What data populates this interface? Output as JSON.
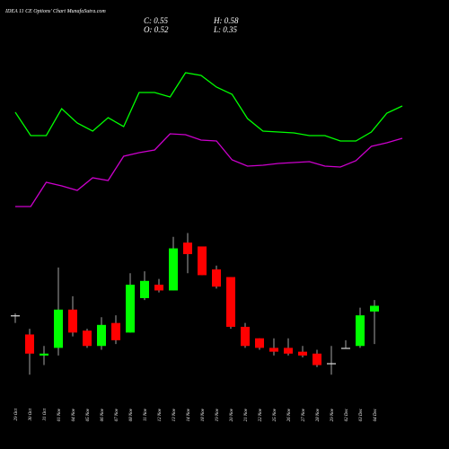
{
  "chart_data": {
    "type": "candlestick",
    "title": "IDEA 11 CE Options' Chart MunafaSutra.com",
    "ohlc_labels": [
      "C: 0.55",
      "H: 0.58",
      "O: 0.52",
      "L: 0.35"
    ],
    "categories": [
      "29 Oct",
      "30 Oct",
      "31 Oct",
      "01 Nov",
      "04 Nov",
      "05 Nov",
      "06 Nov",
      "07 Nov",
      "08 Nov",
      "11 Nov",
      "12 Nov",
      "13 Nov",
      "14 Nov",
      "18 Nov",
      "19 Nov",
      "20 Nov",
      "21 Nov",
      "22 Nov",
      "25 Nov",
      "26 Nov",
      "27 Nov",
      "28 Nov",
      "29 Nov",
      "02 Dec",
      "03 Dec",
      "04 Dec"
    ],
    "open": [
      0.5,
      0.4,
      0.29,
      0.33,
      0.53,
      0.42,
      0.34,
      0.46,
      0.41,
      0.59,
      0.66,
      0.63,
      0.88,
      0.86,
      0.74,
      0.7,
      0.44,
      0.38,
      0.33,
      0.33,
      0.31,
      0.3,
      0.25,
      0.33,
      0.34,
      0.52
    ],
    "high": [
      0.51,
      0.43,
      0.34,
      0.75,
      0.6,
      0.43,
      0.49,
      0.5,
      0.72,
      0.73,
      0.69,
      0.91,
      0.93,
      0.86,
      0.76,
      0.7,
      0.46,
      0.38,
      0.38,
      0.38,
      0.34,
      0.32,
      0.34,
      0.37,
      0.54,
      0.58
    ],
    "low": [
      0.46,
      0.19,
      0.24,
      0.29,
      0.39,
      0.33,
      0.32,
      0.35,
      0.41,
      0.58,
      0.62,
      0.63,
      0.72,
      0.71,
      0.64,
      0.43,
      0.33,
      0.32,
      0.29,
      0.29,
      0.28,
      0.23,
      0.19,
      0.33,
      0.33,
      0.35
    ],
    "close": [
      0.5,
      0.3,
      0.3,
      0.53,
      0.41,
      0.34,
      0.45,
      0.37,
      0.66,
      0.68,
      0.63,
      0.85,
      0.82,
      0.71,
      0.65,
      0.44,
      0.34,
      0.33,
      0.31,
      0.3,
      0.29,
      0.24,
      0.25,
      0.33,
      0.5,
      0.55
    ],
    "up_color": "#00ff00",
    "down_color": "#ff0000",
    "ylim": [
      0.13,
      0.97
    ],
    "series": [
      {
        "color": "#00ff00",
        "axis": "y2",
        "values": [
          62.5,
          49.5,
          49.5,
          64.5,
          56.5,
          52,
          59.5,
          54.5,
          73.5,
          73.5,
          71,
          84.5,
          83,
          76.5,
          72.5,
          59,
          52,
          51.5,
          51,
          49.5,
          49.5,
          46.5,
          46.5,
          51.5,
          62,
          66
        ]
      },
      {
        "color": "#cc00cc",
        "axis": "y2",
        "values": [
          10,
          10,
          23.5,
          21.5,
          19,
          26,
          24.5,
          38,
          40,
          41.5,
          50.5,
          50,
          47,
          46.5,
          36,
          32.5,
          33,
          34,
          34.5,
          35,
          32.5,
          32,
          35.5,
          43.5,
          45.5,
          48
        ]
      }
    ],
    "y2lim": [
      0,
      100
    ]
  }
}
